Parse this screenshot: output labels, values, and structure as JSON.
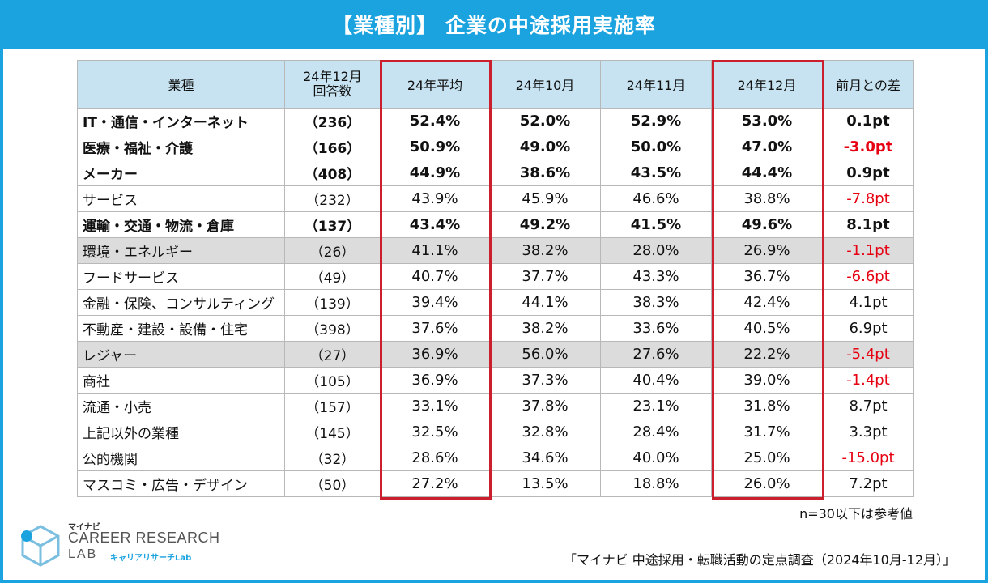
{
  "title": "【業種別】 企業の中途採用実施率",
  "table": {
    "headers": {
      "industry": "業種",
      "responses_line1": "24年12月",
      "responses_line2": "回答数",
      "avg": "24年平均",
      "oct": "24年10月",
      "nov": "24年11月",
      "dec": "24年12月",
      "diff": "前月との差"
    },
    "rows": [
      {
        "industry": "IT・通信・インターネット",
        "n": "（236）",
        "avg": "52.4%",
        "oct": "52.0%",
        "nov": "52.9%",
        "dec": "53.0%",
        "diff": "0.1pt",
        "bold": true,
        "gray": false,
        "neg": false
      },
      {
        "industry": "医療・福祉・介護",
        "n": "（166）",
        "avg": "50.9%",
        "oct": "49.0%",
        "nov": "50.0%",
        "dec": "47.0%",
        "diff": "-3.0pt",
        "bold": true,
        "gray": false,
        "neg": true
      },
      {
        "industry": "メーカー",
        "n": "（408）",
        "avg": "44.9%",
        "oct": "38.6%",
        "nov": "43.5%",
        "dec": "44.4%",
        "diff": "0.9pt",
        "bold": true,
        "gray": false,
        "neg": false
      },
      {
        "industry": "サービス",
        "n": "（232）",
        "avg": "43.9%",
        "oct": "45.9%",
        "nov": "46.6%",
        "dec": "38.8%",
        "diff": "-7.8pt",
        "bold": false,
        "gray": false,
        "neg": true
      },
      {
        "industry": "運輸・交通・物流・倉庫",
        "n": "（137）",
        "avg": "43.4%",
        "oct": "49.2%",
        "nov": "41.5%",
        "dec": "49.6%",
        "diff": "8.1pt",
        "bold": true,
        "gray": false,
        "neg": false
      },
      {
        "industry": "環境・エネルギー",
        "n": "（26）",
        "avg": "41.1%",
        "oct": "38.2%",
        "nov": "28.0%",
        "dec": "26.9%",
        "diff": "-1.1pt",
        "bold": false,
        "gray": true,
        "neg": true
      },
      {
        "industry": "フードサービス",
        "n": "（49）",
        "avg": "40.7%",
        "oct": "37.7%",
        "nov": "43.3%",
        "dec": "36.7%",
        "diff": "-6.6pt",
        "bold": false,
        "gray": false,
        "neg": true
      },
      {
        "industry": "金融・保険、コンサルティング",
        "n": "（139）",
        "avg": "39.4%",
        "oct": "44.1%",
        "nov": "38.3%",
        "dec": "42.4%",
        "diff": "4.1pt",
        "bold": false,
        "gray": false,
        "neg": false
      },
      {
        "industry": "不動産・建設・設備・住宅",
        "n": "（398）",
        "avg": "37.6%",
        "oct": "38.2%",
        "nov": "33.6%",
        "dec": "40.5%",
        "diff": "6.9pt",
        "bold": false,
        "gray": false,
        "neg": false
      },
      {
        "industry": "レジャー",
        "n": "（27）",
        "avg": "36.9%",
        "oct": "56.0%",
        "nov": "27.6%",
        "dec": "22.2%",
        "diff": "-5.4pt",
        "bold": false,
        "gray": true,
        "neg": true
      },
      {
        "industry": "商社",
        "n": "（105）",
        "avg": "36.9%",
        "oct": "37.3%",
        "nov": "40.4%",
        "dec": "39.0%",
        "diff": "-1.4pt",
        "bold": false,
        "gray": false,
        "neg": true
      },
      {
        "industry": "流通・小売",
        "n": "（157）",
        "avg": "33.1%",
        "oct": "37.8%",
        "nov": "23.1%",
        "dec": "31.8%",
        "diff": "8.7pt",
        "bold": false,
        "gray": false,
        "neg": false
      },
      {
        "industry": "上記以外の業種",
        "n": "（145）",
        "avg": "32.5%",
        "oct": "32.8%",
        "nov": "28.4%",
        "dec": "31.7%",
        "diff": "3.3pt",
        "bold": false,
        "gray": false,
        "neg": false
      },
      {
        "industry": "公的機関",
        "n": "（32）",
        "avg": "28.6%",
        "oct": "34.6%",
        "nov": "40.0%",
        "dec": "25.0%",
        "diff": "-15.0pt",
        "bold": false,
        "gray": false,
        "neg": true
      },
      {
        "industry": "マスコミ・広告・デザイン",
        "n": "（50）",
        "avg": "27.2%",
        "oct": "13.5%",
        "nov": "18.8%",
        "dec": "26.0%",
        "diff": "7.2pt",
        "bold": false,
        "gray": false,
        "neg": false
      }
    ]
  },
  "note": "n=30以下は参考値",
  "source": "「マイナビ 中途採用・転職活動の定点調査（2024年10月-12月）」",
  "logo": {
    "small": "マイナビ",
    "main": "CAREER RESEARCH",
    "lab": "LAB",
    "sub": "キャリアリサーチLab"
  },
  "colors": {
    "accent": "#1aa3de",
    "header_bg": "#c7e3f1",
    "highlight": "#cc1f2e",
    "negative": "#e60012",
    "gray_row": "#dcdcdc"
  }
}
